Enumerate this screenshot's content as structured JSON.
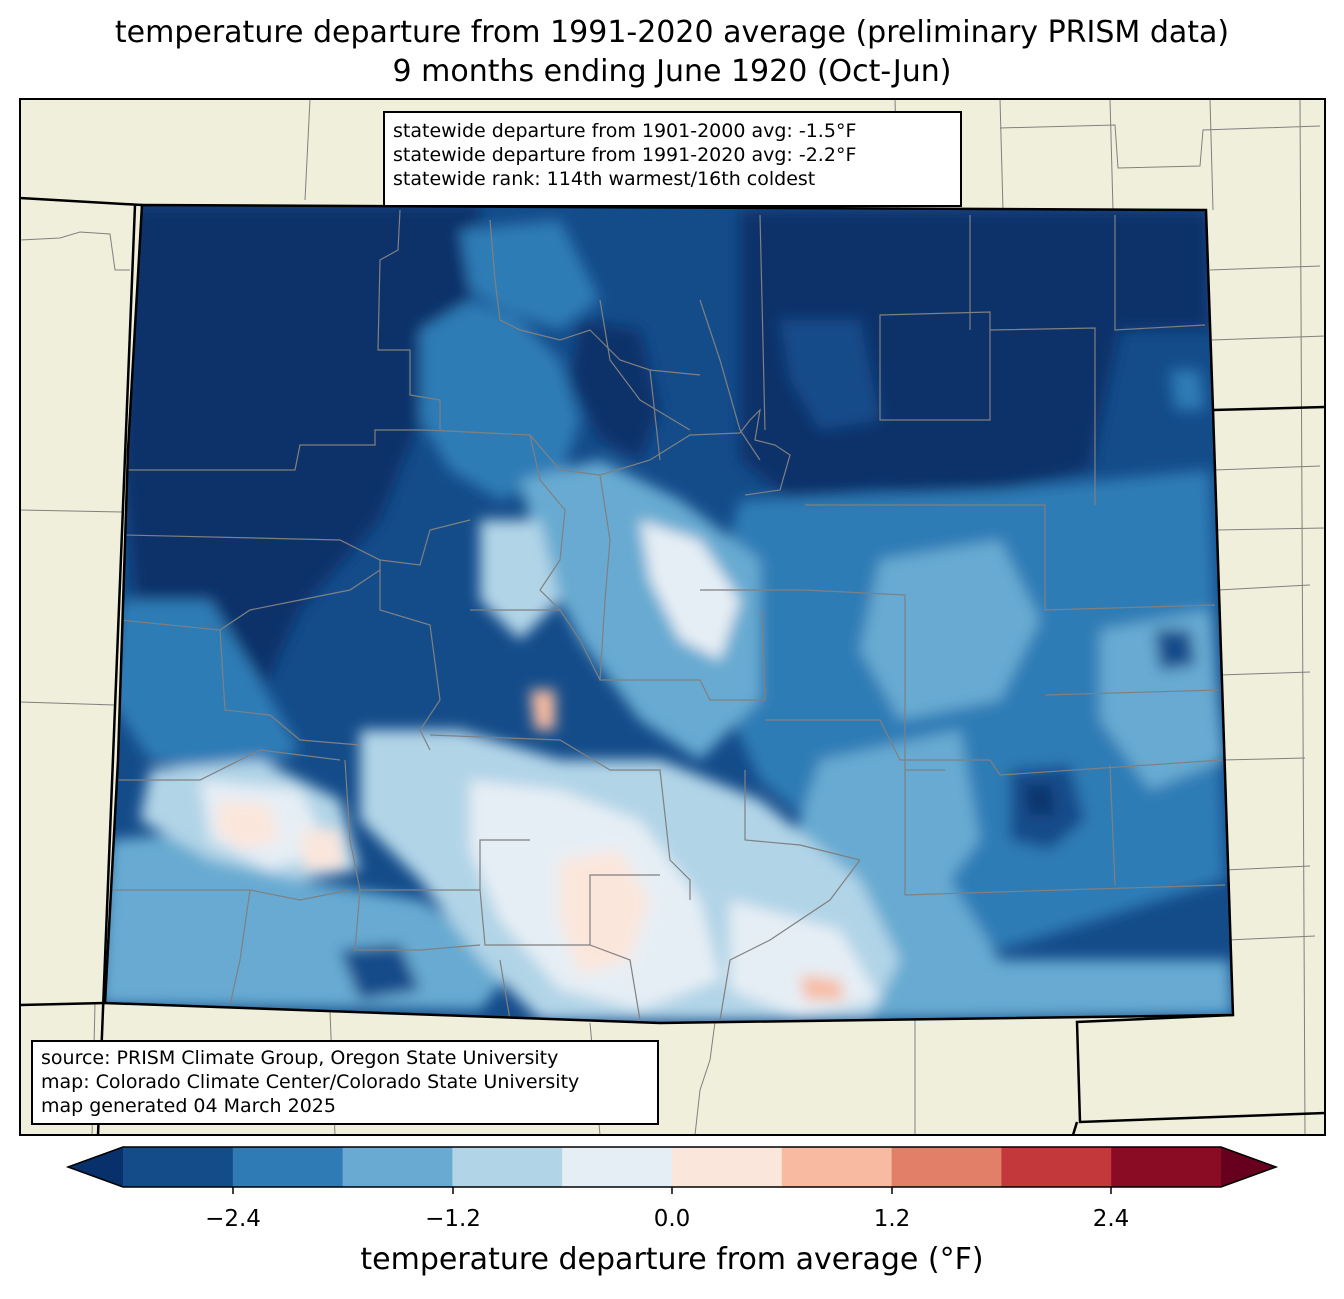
{
  "title_line1": "temperature departure from 1991-2020 average (preliminary PRISM data)",
  "title_line2": "9 months ending June 1920 (Oct-Jun)",
  "stats": {
    "line1": "statewide departure from 1901-2000 avg: -1.5°F",
    "line2": "statewide departure from 1991-2020 avg: -2.2°F",
    "line3": "statewide rank: 114th warmest/16th coldest"
  },
  "source": {
    "line1": "source: PRISM Climate Group, Oregon State University",
    "line2": "map: Colorado Climate Center/Colorado State University",
    "line3": "map generated 04 March 2025"
  },
  "colorbar": {
    "title": "temperature departure from average (°F)",
    "ticks": [
      "−2.4",
      "−1.2",
      "0.0",
      "1.2",
      "2.4"
    ],
    "colors": [
      "#08306b",
      "#144c8a",
      "#2f7bb6",
      "#68aad1",
      "#b1d4e7",
      "#e6eef5",
      "#fbe6dc",
      "#f8bba1",
      "#e17f68",
      "#c3383a",
      "#8a0b24",
      "#67001f"
    ]
  },
  "colors": {
    "land": "#efefdb",
    "state_border": "#000000",
    "county_border": "#808080"
  }
}
